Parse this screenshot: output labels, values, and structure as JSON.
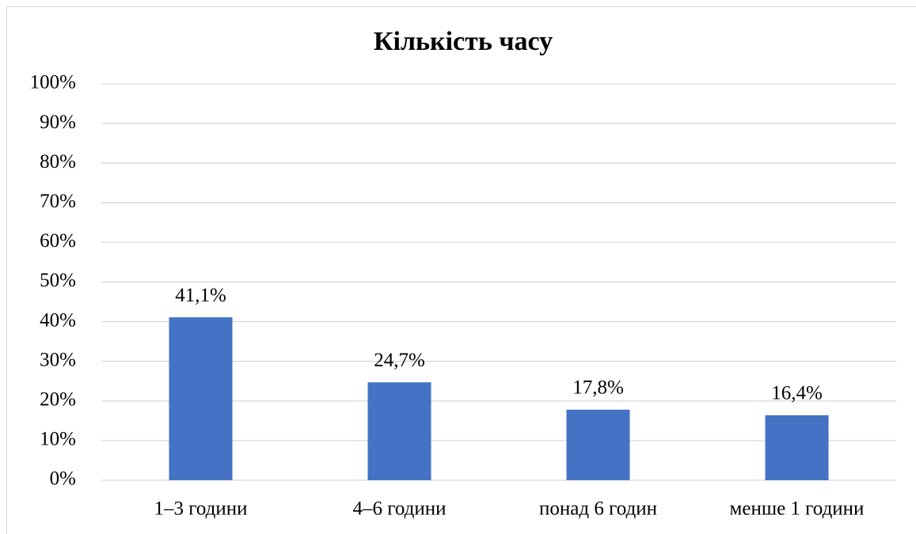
{
  "chart_data": {
    "type": "bar",
    "title": "Кількість часу",
    "categories": [
      "1–3 години",
      "4–6 години",
      "понад 6 годин",
      "менше 1 години"
    ],
    "values": [
      41.1,
      24.7,
      17.8,
      16.4
    ],
    "value_labels": [
      "41,1%",
      "24,7%",
      "17,8%",
      "16,4%"
    ],
    "color": "#4472c4",
    "ylim": [
      0,
      100
    ],
    "yticks": [
      {
        "value": 0,
        "label": "0%"
      },
      {
        "value": 10,
        "label": "10%"
      },
      {
        "value": 20,
        "label": "20%"
      },
      {
        "value": 30,
        "label": "30%"
      },
      {
        "value": 40,
        "label": "40%"
      },
      {
        "value": 50,
        "label": "50%"
      },
      {
        "value": 60,
        "label": "60%"
      },
      {
        "value": 70,
        "label": "70%"
      },
      {
        "value": 80,
        "label": "80%"
      },
      {
        "value": 90,
        "label": "90%"
      },
      {
        "value": 100,
        "label": "100%"
      }
    ],
    "grid": true
  }
}
